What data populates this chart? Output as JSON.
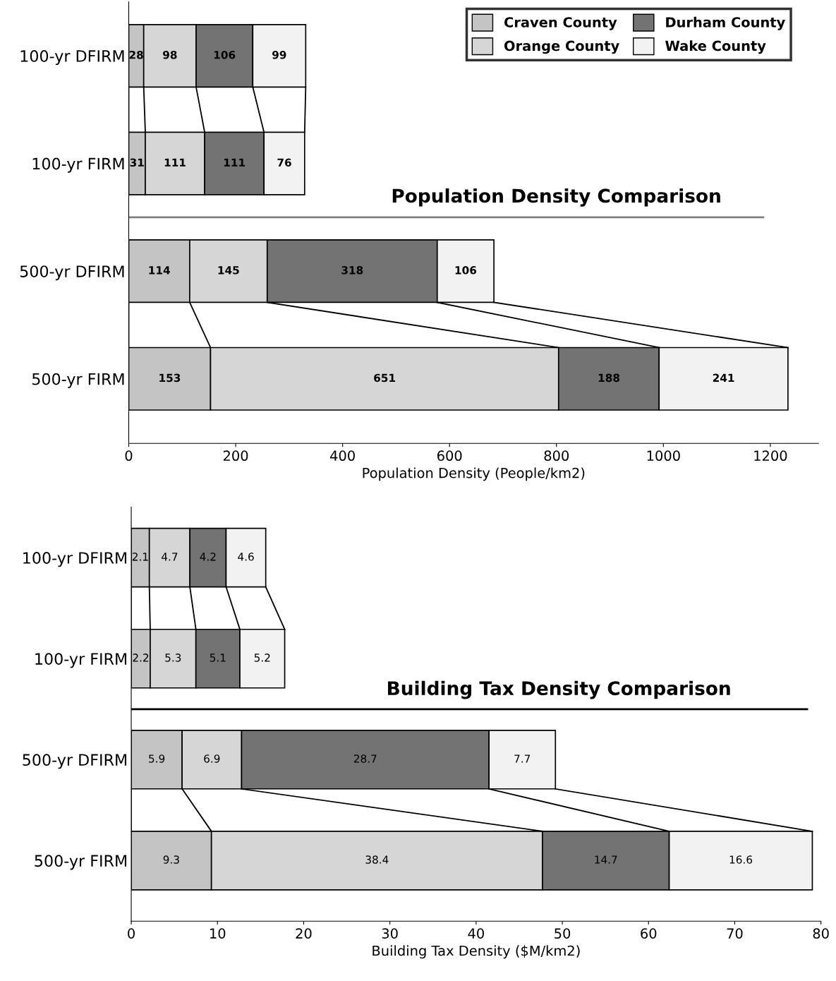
{
  "chart_data": [
    {
      "type": "bar",
      "orientation": "horizontal",
      "stacked": true,
      "title": "Population Density Comparison",
      "xlabel": "Population Density (People/km2)",
      "categories": [
        "100-yr DFIRM",
        "100-yr FIRM",
        "500-yr DFIRM",
        "500-yr FIRM"
      ],
      "xlim": [
        0,
        1290
      ],
      "xticks": [
        0,
        200,
        400,
        600,
        800,
        1000,
        1200
      ],
      "data_labels": true,
      "legend": "top right",
      "grid": false,
      "series": [
        {
          "name": "Craven County",
          "color": "#c4c4c4",
          "values": [
            28,
            31,
            114,
            153
          ]
        },
        {
          "name": "Orange County",
          "color": "#d6d6d6",
          "values": [
            98,
            111,
            145,
            651
          ]
        },
        {
          "name": "Durham County",
          "color": "#737373",
          "values": [
            106,
            111,
            318,
            188
          ]
        },
        {
          "name": "Wake County",
          "color": "#f2f2f2",
          "values": [
            99,
            76,
            106,
            241
          ]
        }
      ]
    },
    {
      "type": "bar",
      "orientation": "horizontal",
      "stacked": true,
      "title": "Building Tax Density Comparison",
      "xlabel": "Building Tax Density ($M/km2)",
      "categories": [
        "100-yr DFIRM",
        "100-yr FIRM",
        "500-yr DFIRM",
        "500-yr FIRM"
      ],
      "xlim": [
        0,
        80
      ],
      "xticks": [
        0,
        10,
        20,
        30,
        40,
        50,
        60,
        70,
        80
      ],
      "data_labels": true,
      "grid": false,
      "series": [
        {
          "color": "#c4c4c4",
          "values": [
            2.1,
            2.2,
            5.9,
            9.3
          ]
        },
        {
          "color": "#d6d6d6",
          "values": [
            4.7,
            5.3,
            6.9,
            38.4
          ]
        },
        {
          "color": "#737373",
          "values": [
            4.2,
            5.1,
            28.7,
            14.7
          ]
        },
        {
          "color": "#f2f2f2",
          "values": [
            4.6,
            5.2,
            7.7,
            16.6
          ]
        }
      ]
    }
  ]
}
